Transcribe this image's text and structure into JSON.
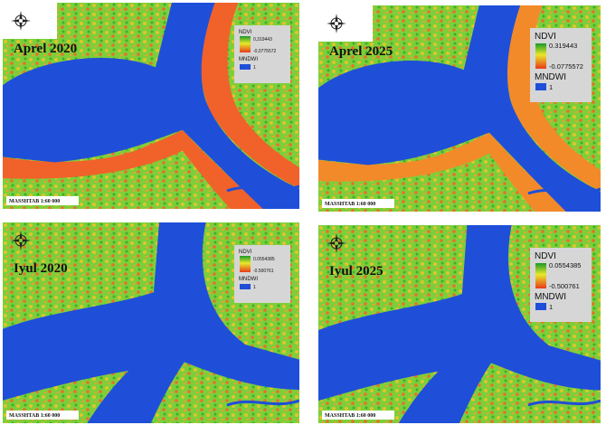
{
  "panels": [
    {
      "title": "Aprel 2020",
      "legend": {
        "ndvi_title": "NDVI",
        "ndvi_max": "0,319443",
        "ndvi_min": "-0,0775572",
        "mndwi_title": "MNDWI",
        "mndwi_value": "1"
      },
      "scale": "MASSHTAB 1:60 000"
    },
    {
      "title": "Aprel 2025",
      "legend": {
        "ndvi_title": "NDVI",
        "ndvi_max": "0.319443",
        "ndvi_min": "-0.0775572",
        "mndwi_title": "MNDWI",
        "mndwi_value": "1"
      },
      "scale": "MASSHTAB 1:60 000"
    },
    {
      "title": "Iyul 2020",
      "legend": {
        "ndvi_title": "NDVI",
        "ndvi_max": "0.0554385",
        "ndvi_min": "-0.500761",
        "mndwi_title": "MNDWI",
        "mndwi_value": "1"
      },
      "scale": "MASSHTAB 1:60 000"
    },
    {
      "title": "Iyul 2025",
      "legend": {
        "ndvi_title": "NDVI",
        "ndvi_max": "0.0554385",
        "ndvi_min": "-0.500761",
        "mndwi_title": "MNDWI",
        "mndwi_value": "1"
      },
      "scale": "MASSHTAB 1:60 000"
    }
  ]
}
